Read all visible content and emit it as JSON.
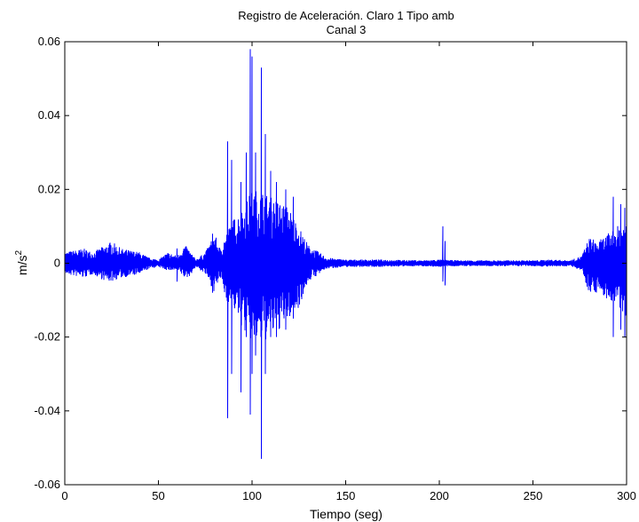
{
  "chart_data": {
    "type": "line",
    "title_line1": "Registro de Aceleración. Claro  1 Tipo amb",
    "title_line2": "Canal 3",
    "xlabel": "Tiempo (seg)",
    "ylabel_base": "m/s",
    "ylabel_sup": "2",
    "xlim": [
      0,
      300
    ],
    "ylim": [
      -0.06,
      0.06
    ],
    "xticks": [
      0,
      50,
      100,
      150,
      200,
      250,
      300
    ],
    "yticks": [
      -0.06,
      -0.04,
      -0.02,
      0,
      0.02,
      0.04,
      0.06
    ],
    "xtick_labels": [
      "0",
      "50",
      "100",
      "150",
      "200",
      "250",
      "300"
    ],
    "ytick_labels": [
      "-0.06",
      "-0.04",
      "-0.02",
      "0",
      "0.02",
      "0.04",
      "0.06"
    ],
    "grid": true,
    "line_color": "#0000ff",
    "envelope": [
      [
        0,
        0.003,
        0.003
      ],
      [
        10,
        0.004,
        0.004
      ],
      [
        15,
        0.003,
        0.003
      ],
      [
        22,
        0.005,
        0.005
      ],
      [
        25,
        0.006,
        0.005
      ],
      [
        30,
        0.004,
        0.004
      ],
      [
        40,
        0.003,
        0.003
      ],
      [
        45,
        0.0015,
        0.0015
      ],
      [
        50,
        0.001,
        0.001
      ],
      [
        55,
        0.003,
        0.002
      ],
      [
        60,
        0.002,
        0.002
      ],
      [
        64,
        0.005,
        0.004
      ],
      [
        66,
        0.004,
        0.004
      ],
      [
        70,
        0.001,
        0.001
      ],
      [
        75,
        0.003,
        0.003
      ],
      [
        80,
        0.008,
        0.008
      ],
      [
        83,
        0.004,
        0.004
      ],
      [
        86,
        0.008,
        0.01
      ],
      [
        90,
        0.012,
        0.012
      ],
      [
        95,
        0.015,
        0.018
      ],
      [
        100,
        0.02,
        0.022
      ],
      [
        105,
        0.02,
        0.022
      ],
      [
        110,
        0.018,
        0.02
      ],
      [
        115,
        0.017,
        0.018
      ],
      [
        120,
        0.015,
        0.015
      ],
      [
        125,
        0.01,
        0.012
      ],
      [
        130,
        0.005,
        0.005
      ],
      [
        140,
        0.0015,
        0.0015
      ],
      [
        150,
        0.001,
        0.001
      ],
      [
        160,
        0.001,
        0.001
      ],
      [
        170,
        0.001,
        0.001
      ],
      [
        190,
        0.0008,
        0.0008
      ],
      [
        200,
        0.001,
        0.001
      ],
      [
        210,
        0.0008,
        0.0008
      ],
      [
        230,
        0.0008,
        0.0008
      ],
      [
        250,
        0.0008,
        0.0008
      ],
      [
        260,
        0.001,
        0.001
      ],
      [
        270,
        0.0008,
        0.0008
      ],
      [
        276,
        0.002,
        0.002
      ],
      [
        280,
        0.007,
        0.008
      ],
      [
        285,
        0.006,
        0.008
      ],
      [
        290,
        0.008,
        0.01
      ],
      [
        295,
        0.01,
        0.012
      ],
      [
        300,
        0.012,
        0.015
      ]
    ],
    "spikes": [
      [
        87,
        0.033,
        -0.042
      ],
      [
        89,
        0.028,
        -0.03
      ],
      [
        94,
        0.022,
        -0.035
      ],
      [
        97,
        0.03,
        -0.02
      ],
      [
        99,
        0.058,
        -0.041
      ],
      [
        100,
        0.056,
        -0.03
      ],
      [
        102,
        0.03,
        -0.025
      ],
      [
        105,
        0.053,
        -0.053
      ],
      [
        107,
        0.035,
        -0.03
      ],
      [
        110,
        0.025,
        -0.02
      ],
      [
        113,
        0.022,
        -0.02
      ],
      [
        118,
        0.02,
        -0.018
      ],
      [
        122,
        0.018,
        -0.015
      ],
      [
        202,
        0.01,
        -0.005
      ],
      [
        203,
        0.006,
        -0.006
      ],
      [
        60,
        0.004,
        -0.005
      ],
      [
        79,
        0.008,
        -0.008
      ],
      [
        293,
        0.018,
        -0.02
      ],
      [
        297,
        0.016,
        -0.018
      ],
      [
        299,
        0.015,
        -0.02
      ]
    ]
  }
}
